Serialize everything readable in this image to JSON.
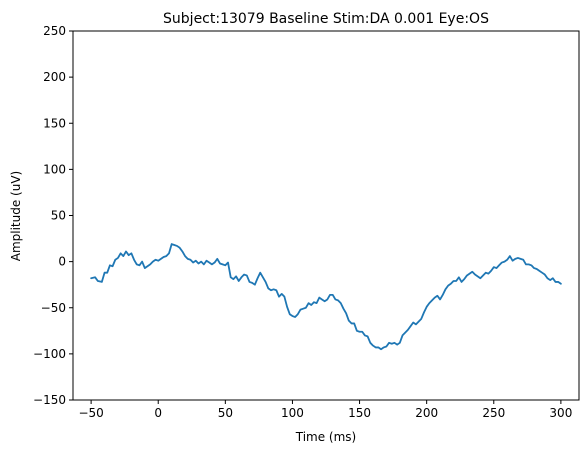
{
  "chart_data": {
    "type": "line",
    "title": "Subject:13079 Baseline Stim:DA 0.001 Eye:OS",
    "xlabel": "Time (ms)",
    "ylabel": "Amplitude (uV)",
    "xlim": [
      -63.5,
      313.5
    ],
    "ylim": [
      -150,
      250
    ],
    "xticks": [
      -50,
      0,
      50,
      100,
      150,
      200,
      250,
      300
    ],
    "yticks": [
      -150,
      -100,
      -50,
      0,
      50,
      100,
      150,
      200,
      250
    ],
    "grid": false,
    "line_color": "#1f77b4",
    "series": [
      {
        "x": [
          -50,
          -47,
          -45,
          -42,
          -40,
          -38,
          -36,
          -34,
          -32,
          -30,
          -28,
          -26,
          -24,
          -22,
          -20,
          -18,
          -16,
          -14,
          -12,
          -10,
          -8,
          -6,
          -4,
          -2,
          0,
          2,
          4,
          6,
          8,
          10,
          12,
          14,
          16,
          18,
          20,
          22,
          24,
          26,
          28,
          30,
          32,
          34,
          36,
          38,
          40,
          42,
          44,
          46,
          48,
          50,
          52,
          54,
          56,
          58,
          60,
          62,
          64,
          66,
          68,
          70,
          72,
          74,
          76,
          78,
          80,
          82,
          84,
          86,
          88,
          90,
          92,
          94,
          96,
          98,
          100,
          102,
          104,
          106,
          108,
          110,
          112,
          114,
          116,
          118,
          120,
          122,
          124,
          126,
          128,
          130,
          132,
          134,
          136,
          138,
          140,
          142,
          144,
          146,
          148,
          150,
          152,
          154,
          156,
          158,
          160,
          162,
          164,
          166,
          168,
          170,
          172,
          174,
          176,
          178,
          180,
          182,
          184,
          186,
          188,
          190,
          192,
          194,
          196,
          198,
          200,
          202,
          204,
          206,
          208,
          210,
          212,
          214,
          216,
          218,
          220,
          222,
          224,
          226,
          228,
          230,
          232,
          234,
          236,
          238,
          240,
          242,
          244,
          246,
          248,
          250,
          252,
          254,
          256,
          258,
          260,
          262,
          264,
          266,
          268,
          270,
          272,
          274,
          276,
          278,
          280,
          282,
          284,
          286,
          288,
          290,
          292,
          294,
          296,
          298,
          300
        ],
        "values": [
          -18,
          -17,
          -21,
          -22,
          -12,
          -12,
          -4,
          -5,
          2,
          4,
          9,
          6,
          11,
          7,
          9,
          2,
          -3,
          -4,
          0,
          -7,
          -5,
          -3,
          0,
          2,
          1,
          3,
          5,
          6,
          9,
          19,
          18,
          17,
          15,
          11,
          6,
          3,
          2,
          -1,
          1,
          -2,
          0,
          -3,
          1,
          -1,
          -3,
          -1,
          3,
          -2,
          -3,
          -4,
          -1,
          -17,
          -19,
          -16,
          -21,
          -17,
          -14,
          -15,
          -22,
          -23,
          -25,
          -18,
          -12,
          -17,
          -22,
          -29,
          -31,
          -30,
          -31,
          -38,
          -35,
          -38,
          -49,
          -57,
          -59,
          -60,
          -57,
          -52,
          -51,
          -50,
          -45,
          -47,
          -44,
          -45,
          -39,
          -41,
          -43,
          -41,
          -36,
          -36,
          -41,
          -42,
          -45,
          -51,
          -56,
          -64,
          -67,
          -67,
          -75,
          -76,
          -76,
          -80,
          -81,
          -88,
          -91,
          -93,
          -93,
          -95,
          -93,
          -92,
          -88,
          -89,
          -88,
          -90,
          -88,
          -80,
          -77,
          -74,
          -70,
          -66,
          -68,
          -65,
          -62,
          -55,
          -49,
          -45,
          -42,
          -39,
          -37,
          -41,
          -36,
          -30,
          -26,
          -24,
          -21,
          -21,
          -17,
          -22,
          -19,
          -15,
          -13,
          -11,
          -14,
          -16,
          -18,
          -15,
          -12,
          -13,
          -10,
          -6,
          -7,
          -4,
          -1,
          0,
          2,
          6,
          1,
          3,
          4,
          3,
          2,
          -3,
          -3,
          -4,
          -7,
          -8,
          -10,
          -12,
          -14,
          -18,
          -20,
          -18,
          -22,
          -22,
          -24
        ],
        "x_shift_note": ""
      }
    ]
  }
}
